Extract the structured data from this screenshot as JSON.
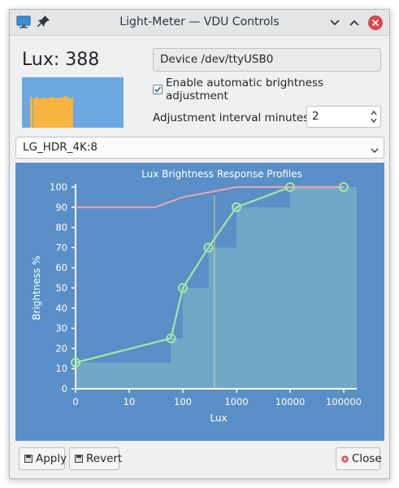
{
  "window": {
    "title": "Light-Meter — VDU Controls",
    "icons": {
      "app": "monitor-icon",
      "pin": "pin-icon",
      "minimize": "chevron-down-icon",
      "maximize": "chevron-up-icon",
      "close": "close-icon"
    }
  },
  "lux": {
    "label": "Lux: 388",
    "graph_colors": {
      "background": "#6ea8e0",
      "bars": "#f6b441"
    }
  },
  "device": {
    "value": "Device /dev/ttyUSB0"
  },
  "auto_adjust": {
    "label": "Enable automatic brightness adjustment",
    "checked": true
  },
  "interval": {
    "label": "Adjustment interval minutes",
    "value": "2"
  },
  "monitor_select": {
    "selected": "LG_HDR_4K:8"
  },
  "chart_data": {
    "type": "line",
    "title": "Lux Brightness Response Profiles",
    "xlabel": "Lux",
    "ylabel": "Brightness %",
    "x_scale": "log",
    "x_ticks": [
      "0",
      "10",
      "100",
      "1000",
      "10000",
      "100000"
    ],
    "y_ticks": [
      "0",
      "10",
      "20",
      "30",
      "40",
      "50",
      "60",
      "70",
      "80",
      "90",
      "100"
    ],
    "ylim": [
      0,
      100
    ],
    "current_lux": 388,
    "series": [
      {
        "points": [
          [
            1,
            13
          ],
          [
            60,
            25
          ],
          [
            100,
            50
          ],
          [
            300,
            70
          ],
          [
            1000,
            90
          ],
          [
            10000,
            100
          ],
          [
            100000,
            100
          ]
        ],
        "color": "#a8e6a3"
      },
      {
        "points": [
          [
            1,
            90
          ],
          [
            30,
            90
          ],
          [
            100,
            95
          ],
          [
            1000,
            100
          ],
          [
            100000,
            100
          ]
        ],
        "color": "#e8a3b0"
      }
    ],
    "colors": {
      "background": "#5a8fc7",
      "axis": "#ffffff",
      "step_area": "#78b0c8",
      "lux_marker": "#e0d08a"
    }
  },
  "buttons": {
    "apply": "Apply",
    "revert": "Revert",
    "close": "Close"
  }
}
